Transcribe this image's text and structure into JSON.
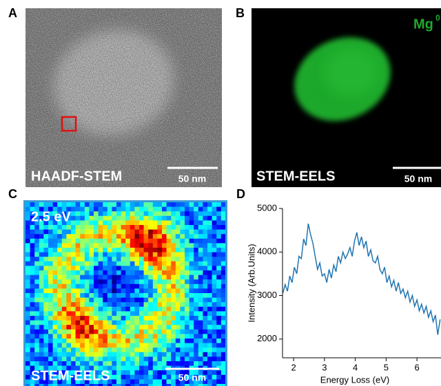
{
  "panels": [
    {
      "label": "A",
      "caption": "HAADF-STEM",
      "scale_bar": "50 nm"
    },
    {
      "label": "B",
      "caption": "STEM-EELS",
      "scale_bar": "50 nm",
      "element": "Mg",
      "element_superscript": "0"
    },
    {
      "label": "C",
      "caption": "STEM-EELS",
      "scale_bar": "50 nm",
      "energy": "2.5 eV"
    }
  ],
  "chart_data": {
    "type": "line",
    "label": "D",
    "x_label": "Energy Loss (eV)",
    "y_label": "Intensity (Arb.Units)",
    "x": [
      1.65,
      1.725,
      1.8,
      1.875,
      1.95,
      2.025,
      2.1,
      2.175,
      2.25,
      2.325,
      2.4,
      2.475,
      2.55,
      2.625,
      2.7,
      2.775,
      2.85,
      2.925,
      3.0,
      3.075,
      3.15,
      3.225,
      3.3,
      3.375,
      3.45,
      3.525,
      3.6,
      3.675,
      3.75,
      3.825,
      3.9,
      3.975,
      4.05,
      4.125,
      4.2,
      4.275,
      4.35,
      4.425,
      4.5,
      4.575,
      4.65,
      4.725,
      4.8,
      4.875,
      4.95,
      5.025,
      5.1,
      5.175,
      5.25,
      5.325,
      5.4,
      5.475,
      5.55,
      5.625,
      5.7,
      5.775,
      5.85,
      5.925,
      6.0,
      6.075,
      6.15,
      6.225,
      6.3,
      6.375,
      6.45,
      6.525,
      6.6,
      6.675,
      6.75
    ],
    "series": [
      {
        "color": "#1f74b0",
        "values": [
          3050,
          3250,
          3100,
          3450,
          3300,
          3650,
          3500,
          3900,
          3850,
          4300,
          4150,
          4650,
          4400,
          4200,
          3900,
          3600,
          3750,
          3450,
          3500,
          3300,
          3600,
          3400,
          3700,
          3550,
          3900,
          3750,
          4000,
          3850,
          3950,
          4100,
          3900,
          4250,
          4450,
          4150,
          4350,
          4100,
          4250,
          3900,
          4050,
          3800,
          3750,
          3900,
          3600,
          3500,
          3650,
          3300,
          3450,
          3200,
          3350,
          3100,
          3300,
          3050,
          3150,
          2950,
          3100,
          2850,
          3000,
          2750,
          2900,
          2650,
          2800,
          2600,
          2750,
          2500,
          2650,
          2400,
          2550,
          2100,
          2450
        ]
      }
    ],
    "xlim": [
      1.64,
      6.78
    ],
    "ylim": [
      1570,
      5000
    ],
    "xticks": [
      2,
      3,
      4,
      5,
      6
    ],
    "yticks": [
      2000,
      3000,
      4000,
      5000
    ]
  }
}
